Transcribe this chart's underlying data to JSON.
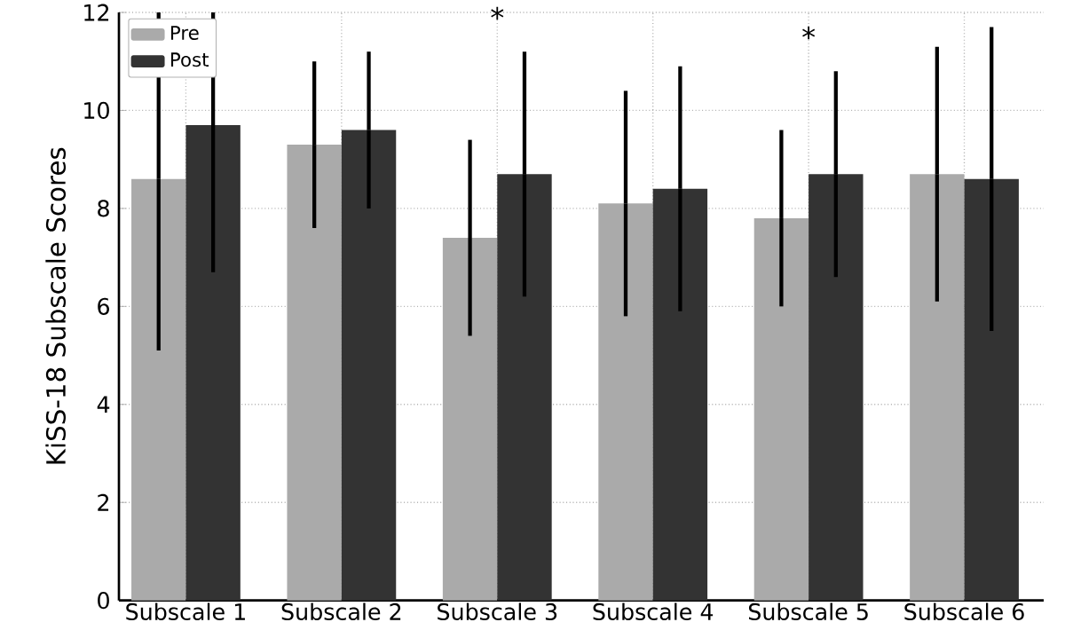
{
  "chart_data": {
    "type": "bar",
    "ylabel": "KiSS-18 Subscale Scores",
    "categories": [
      "Subscale 1",
      "Subscale 2",
      "Subscale 3",
      "Subscale 4",
      "Subscale 5",
      "Subscale 6"
    ],
    "series": [
      {
        "name": "Pre",
        "color": "#aaaaaa",
        "values": [
          8.6,
          9.3,
          7.4,
          8.1,
          7.8,
          8.7
        ],
        "errors": [
          [
            5.1,
            12
          ],
          1.7,
          2.0,
          2.3,
          1.8,
          2.6
        ]
      },
      {
        "name": "Post",
        "color": "#333333",
        "values": [
          9.7,
          9.6,
          8.7,
          8.4,
          8.7,
          8.6
        ],
        "errors": [
          [
            6.7,
            12
          ],
          1.6,
          2.5,
          2.5,
          2.1,
          3.1
        ]
      }
    ],
    "ylim": [
      0,
      12
    ],
    "yticks": [
      0,
      2,
      4,
      6,
      8,
      10,
      12
    ],
    "grid": true,
    "legend": "top left",
    "annotations": [
      "*",
      "*"
    ]
  }
}
